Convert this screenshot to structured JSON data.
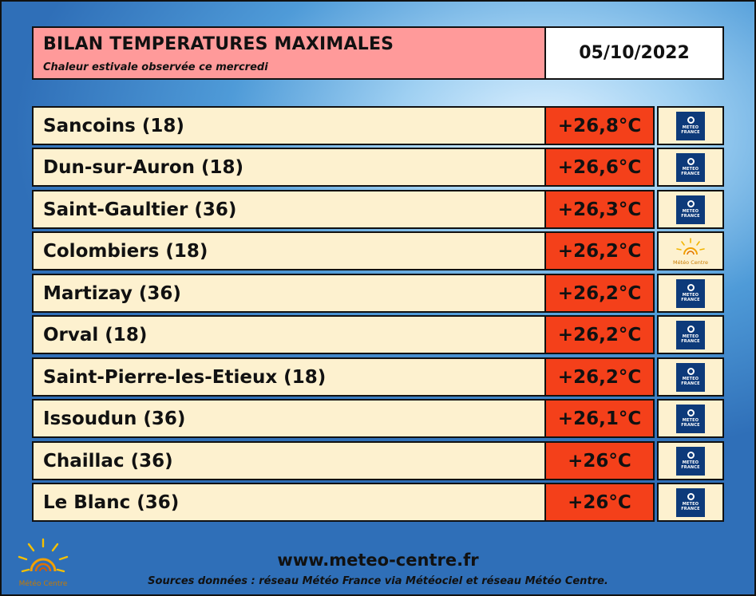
{
  "header": {
    "title": "BILAN TEMPERATURES MAXIMALES",
    "subtitle": "Chaleur estivale observée ce mercredi",
    "date": "05/10/2022"
  },
  "rows": [
    {
      "name": "Sancoins (18)",
      "temp": "+26,8°C",
      "source_logo": "meteo-france-logo"
    },
    {
      "name": "Dun-sur-Auron (18)",
      "temp": "+26,6°C",
      "source_logo": "meteo-france-logo"
    },
    {
      "name": "Saint-Gaultier (36)",
      "temp": "+26,3°C",
      "source_logo": "meteo-france-logo"
    },
    {
      "name": "Colombiers (18)",
      "temp": "+26,2°C",
      "source_logo": "meteo-centre-logo"
    },
    {
      "name": "Martizay (36)",
      "temp": "+26,2°C",
      "source_logo": "meteo-france-logo"
    },
    {
      "name": "Orval (18)",
      "temp": "+26,2°C",
      "source_logo": "meteo-france-logo"
    },
    {
      "name": "Saint-Pierre-les-Etieux (18)",
      "temp": "+26,2°C",
      "source_logo": "meteo-france-logo"
    },
    {
      "name": "Issoudun (36)",
      "temp": "+26,1°C",
      "source_logo": "meteo-france-logo"
    },
    {
      "name": "Chaillac (36)",
      "temp": "+26°C",
      "source_logo": "meteo-france-logo"
    },
    {
      "name": "Le Blanc (36)",
      "temp": "+26°C",
      "source_logo": "meteo-france-logo"
    }
  ],
  "logos": {
    "meteo_france_text": "METEO FRANCE",
    "meteo_centre_text": "Météo Centre"
  },
  "footer": {
    "url": "www.meteo-centre.fr",
    "sources": "Sources données : réseau Météo France via Météociel et réseau Météo Centre."
  },
  "colors": {
    "header_bg": "#ff9a9a",
    "row_bg": "#fdf1cf",
    "temp_bg": "#f4401a",
    "meteo_france_blue": "#0d3a7a"
  }
}
